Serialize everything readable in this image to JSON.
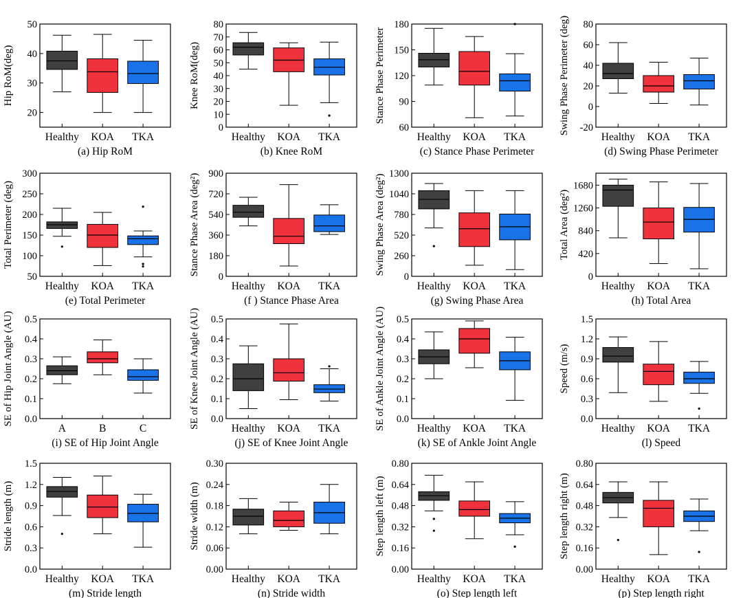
{
  "colors": {
    "healthy": "#404040",
    "koa": "#f0323c",
    "tka": "#1a72e8",
    "line": "#000000"
  },
  "chart_data": [
    {
      "type": "box",
      "caption": "(a) Hip RoM",
      "ylabel": "Hip RoM(deg)",
      "categories": [
        "Healthy",
        "KOA",
        "TKA"
      ],
      "ylim": [
        15,
        50
      ],
      "yticks": [
        20,
        30,
        40,
        50
      ],
      "boxes": [
        {
          "min": 27,
          "q1": 34.6,
          "median": 37.5,
          "q3": 40.8,
          "max": 46.2,
          "outliers": []
        },
        {
          "min": 20,
          "q1": 26.8,
          "median": 33.8,
          "q3": 38.2,
          "max": 46.5,
          "outliers": []
        },
        {
          "min": 20,
          "q1": 29.8,
          "median": 33.2,
          "q3": 37.4,
          "max": 44.5,
          "outliers": []
        }
      ]
    },
    {
      "type": "box",
      "caption": "(b) Knee RoM",
      "ylabel": "Knee RoM(deg)",
      "categories": [
        "Healthy",
        "KOA",
        "TKA"
      ],
      "ylim": [
        0,
        80
      ],
      "yticks": [
        0,
        10,
        20,
        30,
        40,
        50,
        60,
        70,
        80
      ],
      "boxes": [
        {
          "min": 45,
          "q1": 56,
          "median": 62,
          "q3": 65.5,
          "max": 73.5,
          "outliers": []
        },
        {
          "min": 17,
          "q1": 43,
          "median": 52,
          "q3": 61.5,
          "max": 65.5,
          "outliers": []
        },
        {
          "min": 19,
          "q1": 40.5,
          "median": 46.5,
          "q3": 53,
          "max": 66,
          "outliers": [
            9
          ]
        }
      ]
    },
    {
      "type": "box",
      "caption": "(c) Stance Phase Perimeter",
      "ylabel": "Stance Phase Perimeter",
      "categories": [
        "Healthy",
        "KOA",
        "TKA"
      ],
      "ylim": [
        60,
        180
      ],
      "yticks": [
        60,
        90,
        120,
        150,
        180
      ],
      "boxes": [
        {
          "min": 109,
          "q1": 130,
          "median": 138.5,
          "q3": 146,
          "max": 175,
          "outliers": []
        },
        {
          "min": 71,
          "q1": 109,
          "median": 125,
          "q3": 148,
          "max": 165.5,
          "outliers": []
        },
        {
          "min": 73,
          "q1": 102,
          "median": 114,
          "q3": 122,
          "max": 145.5,
          "outliers": [
            180
          ]
        }
      ]
    },
    {
      "type": "box",
      "caption": "(d) Swing Phase Perimeter",
      "ylabel": "Swing Phase Perimeter (deg)",
      "categories": [
        "Healthy",
        "KOA",
        "TKA"
      ],
      "ylim": [
        -20,
        80
      ],
      "yticks": [
        -20,
        0,
        20,
        40,
        60,
        80
      ],
      "boxes": [
        {
          "min": 13,
          "q1": 27,
          "median": 32,
          "q3": 42,
          "max": 62,
          "outliers": []
        },
        {
          "min": 3,
          "q1": 14,
          "median": 20,
          "q3": 30,
          "max": 43,
          "outliers": []
        },
        {
          "min": 1.5,
          "q1": 17,
          "median": 25,
          "q3": 31,
          "max": 47,
          "outliers": []
        }
      ]
    },
    {
      "type": "box",
      "caption": "(e) Total Perimeter",
      "ylabel": "Total Perimeter (deg)",
      "categories": [
        "Healthy",
        "KOA",
        "TKA"
      ],
      "ylim": [
        50,
        300
      ],
      "yticks": [
        50,
        100,
        150,
        200,
        250,
        300
      ],
      "boxes": [
        {
          "min": 147,
          "q1": 166,
          "median": 175,
          "q3": 182,
          "max": 215,
          "outliers": [
            122
          ]
        },
        {
          "min": 76,
          "q1": 120,
          "median": 150,
          "q3": 176,
          "max": 205,
          "outliers": []
        },
        {
          "min": 97,
          "q1": 127,
          "median": 141,
          "q3": 148,
          "max": 160,
          "outliers": [
            80,
            74,
            219
          ]
        }
      ]
    },
    {
      "type": "box",
      "caption": "(f ) Stance Phase Area",
      "ylabel": "Stance Phase Area (deg²)",
      "categories": [
        "Healthy",
        "KOA",
        "TKA"
      ],
      "ylim": [
        0,
        900
      ],
      "yticks": [
        0,
        180,
        360,
        540,
        720,
        900
      ],
      "boxes": [
        {
          "min": 440,
          "q1": 515,
          "median": 560,
          "q3": 620,
          "max": 690,
          "outliers": []
        },
        {
          "min": 90,
          "q1": 285,
          "median": 350,
          "q3": 505,
          "max": 800,
          "outliers": []
        },
        {
          "min": 365,
          "q1": 390,
          "median": 440,
          "q3": 535,
          "max": 625,
          "outliers": []
        }
      ]
    },
    {
      "type": "box",
      "caption": "(g) Swing Phase Area",
      "ylabel": "Swing Phase Area (deg²)",
      "categories": [
        "Healthy",
        "KOA",
        "TKA"
      ],
      "ylim": [
        0,
        1300
      ],
      "yticks": [
        0,
        260,
        520,
        780,
        1040,
        1300
      ],
      "boxes": [
        {
          "min": 610,
          "q1": 850,
          "median": 970,
          "q3": 1080,
          "max": 1170,
          "outliers": [
            380
          ]
        },
        {
          "min": 140,
          "q1": 375,
          "median": 600,
          "q3": 800,
          "max": 1080,
          "outliers": []
        },
        {
          "min": 85,
          "q1": 460,
          "median": 625,
          "q3": 785,
          "max": 1080,
          "outliers": []
        }
      ]
    },
    {
      "type": "box",
      "caption": "(h) Total Area",
      "ylabel": "Total Area (deg²)",
      "categories": [
        "Healthy",
        "KOA",
        "TKA"
      ],
      "ylim": [
        0,
        1900
      ],
      "yticks": [
        0,
        420,
        840,
        1260,
        1680
      ],
      "boxes": [
        {
          "min": 710,
          "q1": 1290,
          "median": 1590,
          "q3": 1680,
          "max": 1790,
          "outliers": []
        },
        {
          "min": 235,
          "q1": 690,
          "median": 1000,
          "q3": 1260,
          "max": 1740,
          "outliers": []
        },
        {
          "min": 140,
          "q1": 815,
          "median": 1050,
          "q3": 1270,
          "max": 1710,
          "outliers": []
        }
      ]
    },
    {
      "type": "box",
      "caption": "(i) SE of Hip Joint Angle",
      "ylabel": "SE of Hip Joint Angle (AU)",
      "categories": [
        "A",
        "B",
        "C"
      ],
      "ylim": [
        0,
        0.5
      ],
      "yticks": [
        0.0,
        0.1,
        0.2,
        0.3,
        0.4,
        0.5
      ],
      "boxes": [
        {
          "min": 0.175,
          "q1": 0.22,
          "median": 0.24,
          "q3": 0.265,
          "max": 0.31,
          "outliers": []
        },
        {
          "min": 0.22,
          "q1": 0.28,
          "median": 0.3,
          "q3": 0.335,
          "max": 0.395,
          "outliers": []
        },
        {
          "min": 0.128,
          "q1": 0.192,
          "median": 0.21,
          "q3": 0.245,
          "max": 0.3,
          "outliers": []
        }
      ]
    },
    {
      "type": "box",
      "caption": "(j) SE of Knee Joint Angle",
      "ylabel": "SE of Knee Joint Angle (AU)",
      "categories": [
        "Healthy",
        "KOA",
        "TKA"
      ],
      "ylim": [
        0,
        0.5
      ],
      "yticks": [
        0.0,
        0.1,
        0.2,
        0.3,
        0.4,
        0.5
      ],
      "boxes": [
        {
          "min": 0.05,
          "q1": 0.14,
          "median": 0.2,
          "q3": 0.275,
          "max": 0.365,
          "outliers": []
        },
        {
          "min": 0.095,
          "q1": 0.188,
          "median": 0.23,
          "q3": 0.3,
          "max": 0.475,
          "outliers": []
        },
        {
          "min": 0.088,
          "q1": 0.13,
          "median": 0.148,
          "q3": 0.17,
          "max": 0.25,
          "outliers": [
            0.262
          ]
        }
      ]
    },
    {
      "type": "box",
      "caption": "(k) SE of Ankle Joint Angle",
      "ylabel": "SE of Ankle Joint Angle (AU)",
      "categories": [
        "Healthy",
        "KOA",
        "TKA"
      ],
      "ylim": [
        0,
        0.5
      ],
      "yticks": [
        0.0,
        0.1,
        0.2,
        0.3,
        0.4,
        0.5
      ],
      "boxes": [
        {
          "min": 0.2,
          "q1": 0.275,
          "median": 0.31,
          "q3": 0.345,
          "max": 0.435,
          "outliers": []
        },
        {
          "min": 0.255,
          "q1": 0.328,
          "median": 0.4,
          "q3": 0.452,
          "max": 0.49,
          "outliers": []
        },
        {
          "min": 0.092,
          "q1": 0.245,
          "median": 0.29,
          "q3": 0.335,
          "max": 0.408,
          "outliers": []
        }
      ]
    },
    {
      "type": "box",
      "caption": "(l) Speed",
      "ylabel": "Speed (m/s)",
      "categories": [
        "Healthy",
        "KOA",
        "TKA"
      ],
      "ylim": [
        0,
        1.5
      ],
      "yticks": [
        0.0,
        0.3,
        0.6,
        0.9,
        1.2,
        1.5
      ],
      "boxes": [
        {
          "min": 0.39,
          "q1": 0.85,
          "median": 0.94,
          "q3": 1.07,
          "max": 1.23,
          "outliers": []
        },
        {
          "min": 0.26,
          "q1": 0.51,
          "median": 0.71,
          "q3": 0.82,
          "max": 1.16,
          "outliers": []
        },
        {
          "min": 0.38,
          "q1": 0.53,
          "median": 0.6,
          "q3": 0.7,
          "max": 0.86,
          "outliers": [
            0.15
          ]
        }
      ]
    },
    {
      "type": "box",
      "caption": "(m) Stride length",
      "ylabel": "Stride length (m)",
      "categories": [
        "Healthy",
        "KOA",
        "TKA"
      ],
      "ylim": [
        0,
        1.5
      ],
      "yticks": [
        0.0,
        0.3,
        0.6,
        0.9,
        1.2,
        1.5
      ],
      "boxes": [
        {
          "min": 0.76,
          "q1": 1.02,
          "median": 1.1,
          "q3": 1.17,
          "max": 1.3,
          "outliers": [
            0.5
          ]
        },
        {
          "min": 0.5,
          "q1": 0.73,
          "median": 0.88,
          "q3": 1.05,
          "max": 1.32,
          "outliers": []
        },
        {
          "min": 0.31,
          "q1": 0.67,
          "median": 0.79,
          "q3": 0.92,
          "max": 1.06,
          "outliers": []
        }
      ]
    },
    {
      "type": "box",
      "caption": "(n) Stride width",
      "ylabel": "Stride width (m)",
      "categories": [
        "Healthy",
        "KOA",
        "TKA"
      ],
      "ylim": [
        0,
        0.3
      ],
      "yticks": [
        0.0,
        0.06,
        0.12,
        0.18,
        0.24,
        0.3
      ],
      "boxes": [
        {
          "min": 0.1,
          "q1": 0.125,
          "median": 0.15,
          "q3": 0.17,
          "max": 0.2,
          "outliers": []
        },
        {
          "min": 0.11,
          "q1": 0.12,
          "median": 0.138,
          "q3": 0.165,
          "max": 0.19,
          "outliers": []
        },
        {
          "min": 0.1,
          "q1": 0.13,
          "median": 0.16,
          "q3": 0.19,
          "max": 0.24,
          "outliers": []
        }
      ]
    },
    {
      "type": "box",
      "caption": "(o) Step length left",
      "ylabel": "Step length left (m)",
      "categories": [
        "Healthy",
        "KOA",
        "TKA"
      ],
      "ylim": [
        0,
        0.8
      ],
      "yticks": [
        0.0,
        0.16,
        0.32,
        0.48,
        0.64,
        0.8
      ],
      "boxes": [
        {
          "min": 0.44,
          "q1": 0.52,
          "median": 0.555,
          "q3": 0.585,
          "max": 0.71,
          "outliers": [
            0.38,
            0.29
          ]
        },
        {
          "min": 0.23,
          "q1": 0.4,
          "median": 0.45,
          "q3": 0.515,
          "max": 0.66,
          "outliers": []
        },
        {
          "min": 0.26,
          "q1": 0.35,
          "median": 0.385,
          "q3": 0.42,
          "max": 0.51,
          "outliers": [
            0.17
          ]
        }
      ]
    },
    {
      "type": "box",
      "caption": "(p) Step length right",
      "ylabel": "Step length right (m)",
      "categories": [
        "Healthy",
        "KOA",
        "TKA"
      ],
      "ylim": [
        0,
        0.8
      ],
      "yticks": [
        0.0,
        0.16,
        0.32,
        0.48,
        0.64,
        0.8
      ],
      "boxes": [
        {
          "min": 0.39,
          "q1": 0.5,
          "median": 0.54,
          "q3": 0.58,
          "max": 0.66,
          "outliers": [
            0.22
          ]
        },
        {
          "min": 0.11,
          "q1": 0.32,
          "median": 0.46,
          "q3": 0.52,
          "max": 0.66,
          "outliers": []
        },
        {
          "min": 0.29,
          "q1": 0.36,
          "median": 0.4,
          "q3": 0.44,
          "max": 0.53,
          "outliers": [
            0.13
          ]
        }
      ]
    }
  ]
}
